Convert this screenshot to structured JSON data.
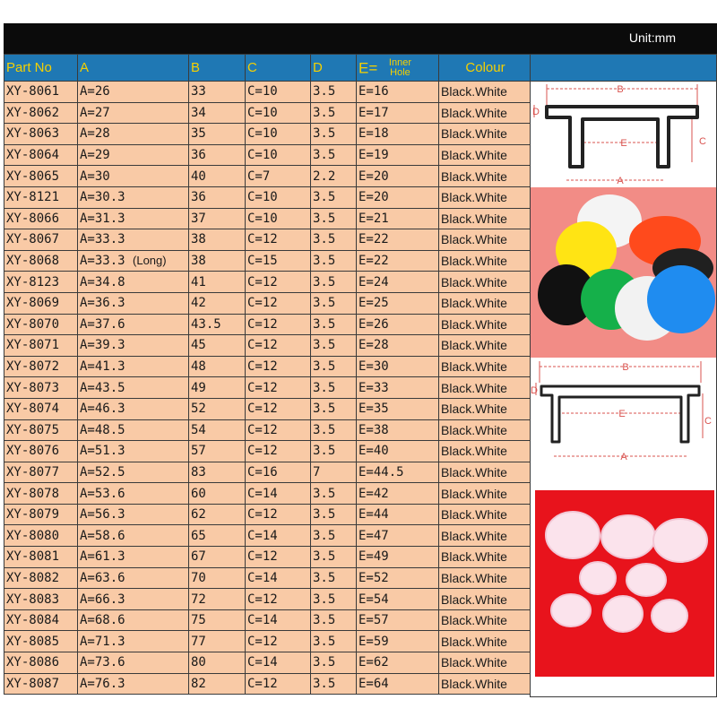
{
  "unit_label": "Unit:mm",
  "headers": {
    "part_no": "Part No",
    "a": "A",
    "b": "B",
    "c": "C",
    "d": "D",
    "e": "E=",
    "e_sub": "Inner Hole",
    "colour": "Colour"
  },
  "rows": [
    {
      "part": "XY-8061",
      "a": "A=26",
      "b": "33",
      "c": "C=10",
      "d": "3.5",
      "e": "E=16",
      "colour": "Black.White"
    },
    {
      "part": "XY-8062",
      "a": "A=27",
      "b": "34",
      "c": "C=10",
      "d": "3.5",
      "e": "E=17",
      "colour": "Black.White"
    },
    {
      "part": "XY-8063",
      "a": "A=28",
      "b": "35",
      "c": "C=10",
      "d": "3.5",
      "e": "E=18",
      "colour": "Black.White"
    },
    {
      "part": "XY-8064",
      "a": "A=29",
      "b": "36",
      "c": "C=10",
      "d": "3.5",
      "e": "E=19",
      "colour": "Black.White"
    },
    {
      "part": "XY-8065",
      "a": "A=30",
      "b": "40",
      "c": "C=7",
      "d": "2.2",
      "e": "E=20",
      "colour": "Black.White"
    },
    {
      "part": "XY-8121",
      "a": "A=30.3",
      "b": "36",
      "c": "C=10",
      "d": "3.5",
      "e": "E=20",
      "colour": "Black.White"
    },
    {
      "part": "XY-8066",
      "a": "A=31.3",
      "b": "37",
      "c": "C=10",
      "d": "3.5",
      "e": "E=21",
      "colour": "Black.White"
    },
    {
      "part": "XY-8067",
      "a": "A=33.3",
      "b": "38",
      "c": "C=12",
      "d": "3.5",
      "e": "E=22",
      "colour": "Black.White"
    },
    {
      "part": "XY-8068",
      "a": "A=33.3",
      "a_note": "(Long)",
      "b": "38",
      "c": "C=15",
      "d": "3.5",
      "e": "E=22",
      "colour": "Black.White"
    },
    {
      "part": "XY-8123",
      "a": "A=34.8",
      "b": "41",
      "c": "C=12",
      "d": "3.5",
      "e": "E=24",
      "colour": "Black.White"
    },
    {
      "part": "XY-8069",
      "a": "A=36.3",
      "b": "42",
      "c": "C=12",
      "d": "3.5",
      "e": "E=25",
      "colour": "Black.White"
    },
    {
      "part": "XY-8070",
      "a": "A=37.6",
      "b": "43.5",
      "c": "C=12",
      "d": "3.5",
      "e": "E=26",
      "colour": "Black.White"
    },
    {
      "part": "XY-8071",
      "a": "A=39.3",
      "b": "45",
      "c": "C=12",
      "d": "3.5",
      "e": "E=28",
      "colour": "Black.White"
    },
    {
      "part": "XY-8072",
      "a": "A=41.3",
      "b": "48",
      "c": "C=12",
      "d": "3.5",
      "e": "E=30",
      "colour": "Black.White"
    },
    {
      "part": "XY-8073",
      "a": "A=43.5",
      "b": "49",
      "c": "C=12",
      "d": "3.5",
      "e": "E=33",
      "colour": "Black.White"
    },
    {
      "part": "XY-8074",
      "a": "A=46.3",
      "b": "52",
      "c": "C=12",
      "d": "3.5",
      "e": "E=35",
      "colour": "Black.White"
    },
    {
      "part": "XY-8075",
      "a": "A=48.5",
      "b": "54",
      "c": "C=12",
      "d": "3.5",
      "e": "E=38",
      "colour": "Black.White"
    },
    {
      "part": "XY-8076",
      "a": "A=51.3",
      "b": "57",
      "c": "C=12",
      "d": "3.5",
      "e": "E=40",
      "colour": "Black.White"
    },
    {
      "part": "XY-8077",
      "a": "A=52.5",
      "b": "83",
      "c": "C=16",
      "d": "7",
      "e": "E=44.5",
      "colour": "Black.White"
    },
    {
      "part": "XY-8078",
      "a": "A=53.6",
      "b": "60",
      "c": "C=14",
      "d": "3.5",
      "e": "E=42",
      "colour": "Black.White"
    },
    {
      "part": "XY-8079",
      "a": "A=56.3",
      "b": "62",
      "c": "C=12",
      "d": "3.5",
      "e": "E=44",
      "colour": "Black.White"
    },
    {
      "part": "XY-8080",
      "a": "A=58.6",
      "b": "65",
      "c": "C=14",
      "d": "3.5",
      "e": "E=47",
      "colour": "Black.White"
    },
    {
      "part": "XY-8081",
      "a": "A=61.3",
      "b": "67",
      "c": "C=12",
      "d": "3.5",
      "e": "E=49",
      "colour": "Black.White"
    },
    {
      "part": "XY-8082",
      "a": "A=63.6",
      "b": "70",
      "c": "C=14",
      "d": "3.5",
      "e": "E=52",
      "colour": "Black.White"
    },
    {
      "part": "XY-8083",
      "a": "A=66.3",
      "b": "72",
      "c": "C=12",
      "d": "3.5",
      "e": "E=54",
      "colour": "Black.White"
    },
    {
      "part": "XY-8084",
      "a": "A=68.6",
      "b": "75",
      "c": "C=14",
      "d": "3.5",
      "e": "E=57",
      "colour": "Black.White"
    },
    {
      "part": "XY-8085",
      "a": "A=71.3",
      "b": "77",
      "c": "C=12",
      "d": "3.5",
      "e": "E=59",
      "colour": "Black.White"
    },
    {
      "part": "XY-8086",
      "a": "A=73.6",
      "b": "80",
      "c": "C=14",
      "d": "3.5",
      "e": "E=62",
      "colour": "Black.White"
    },
    {
      "part": "XY-8087",
      "a": "A=76.3",
      "b": "82",
      "c": "C=12",
      "d": "3.5",
      "e": "E=64",
      "colour": "Black.White"
    }
  ],
  "diagram_labels": {
    "b": "B",
    "d": "D",
    "e": "E",
    "c": "C",
    "a": "A"
  },
  "colors": {
    "header_bg": "#1f78b4",
    "header_text": "#f5d000",
    "row_bg": "#f9caa6",
    "top_bar": "#0b0b0b",
    "dimension_red": "#d9534f",
    "photo1_bg": "#f28c86",
    "photo2_bg": "#e8131c"
  },
  "photos": [
    {
      "name": "colored-rubber-plugs-photo",
      "items": [
        "yellow",
        "white",
        "orange",
        "black",
        "green",
        "white",
        "blue"
      ]
    },
    {
      "name": "white-rubber-plugs-photo",
      "items": [
        "white"
      ]
    }
  ]
}
